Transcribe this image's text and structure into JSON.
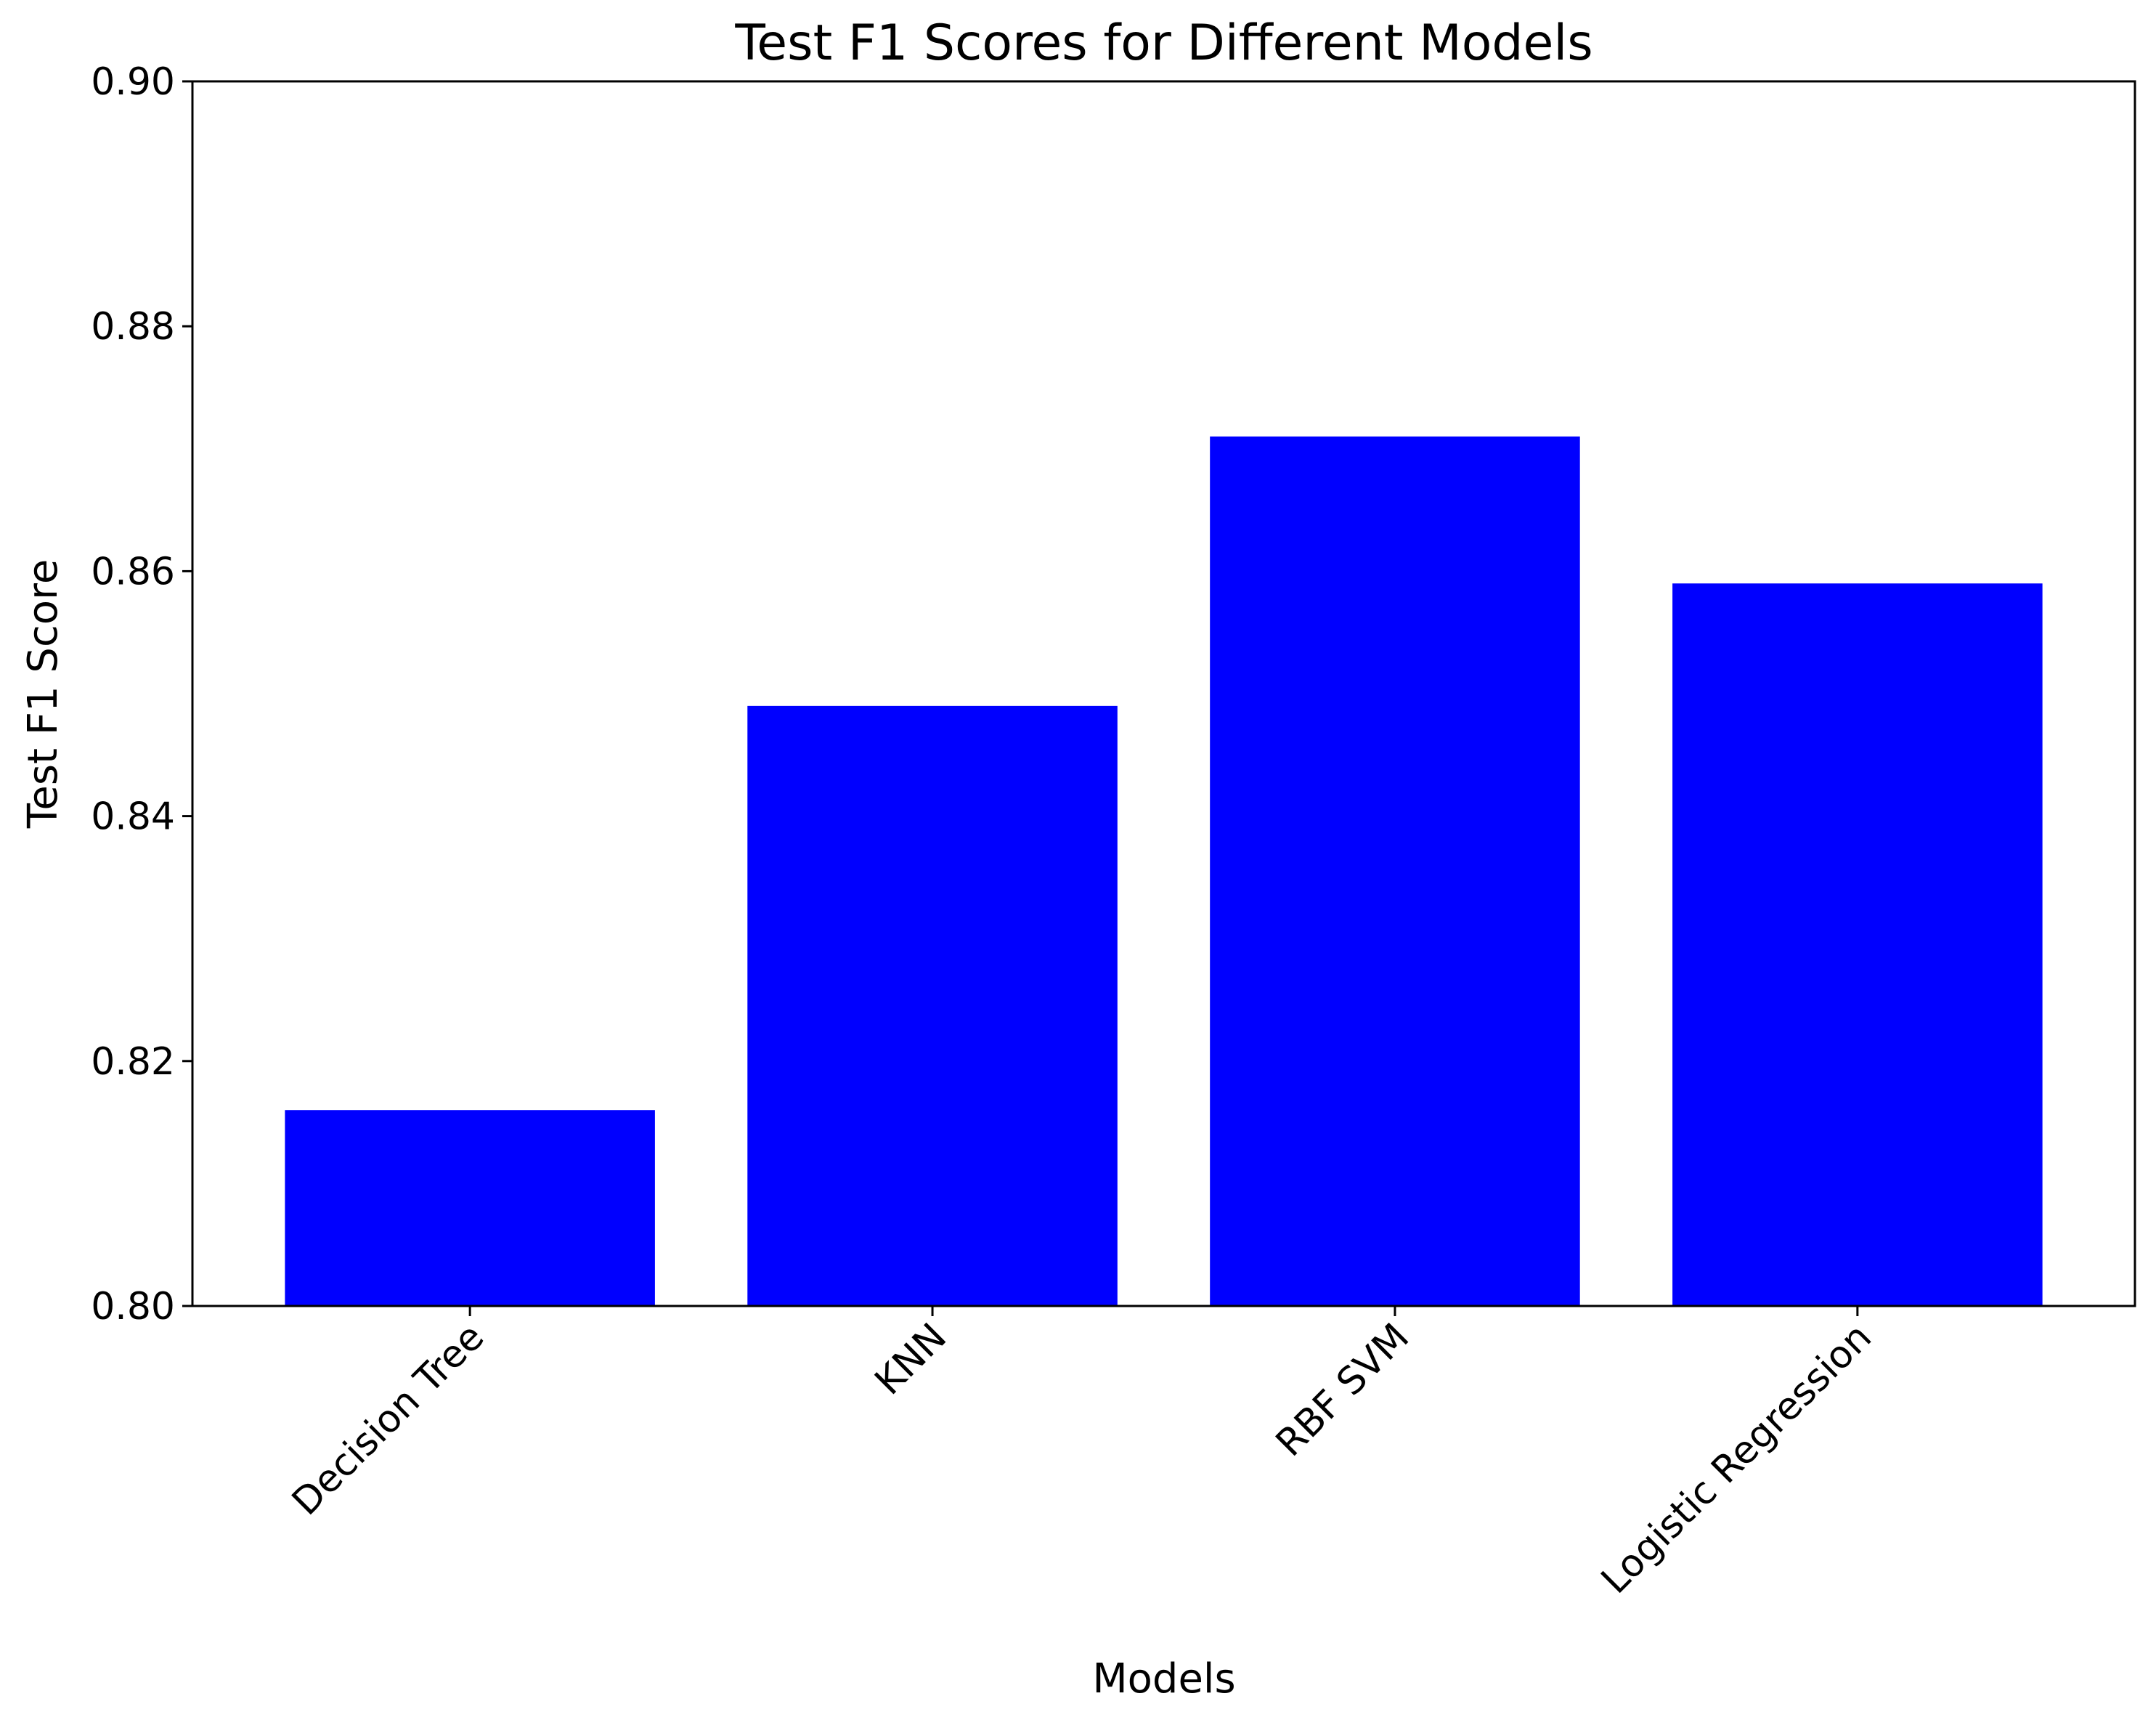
{
  "chart_data": {
    "type": "bar",
    "title": "Test F1 Scores for Different Models",
    "xlabel": "Models",
    "ylabel": "Test F1 Score",
    "categories": [
      "Decision Tree",
      "KNN",
      "RBF SVM",
      "Logistic Regression"
    ],
    "values": [
      0.816,
      0.849,
      0.871,
      0.859
    ],
    "ylim": [
      0.8,
      0.9
    ],
    "yticks": [
      0.8,
      0.82,
      0.84,
      0.86,
      0.88,
      0.9
    ],
    "ytick_labels": [
      "0.80",
      "0.82",
      "0.84",
      "0.86",
      "0.88",
      "0.90"
    ],
    "bar_color": "#0000ff",
    "grid": false,
    "xtick_rotation_deg": 45
  }
}
